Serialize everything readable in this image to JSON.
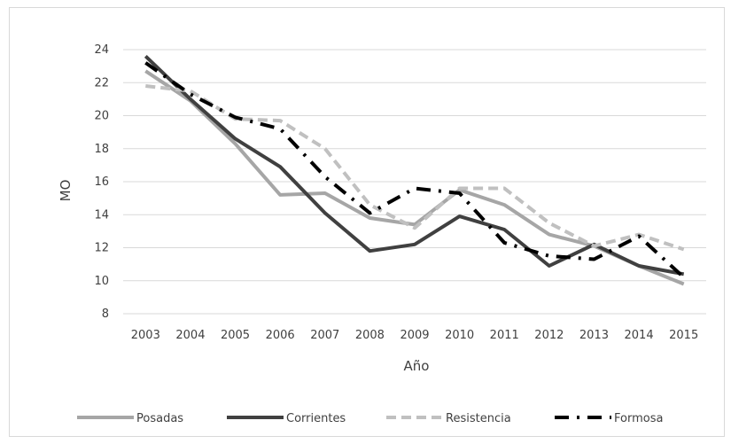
{
  "chart_data": {
    "type": "line",
    "xlabel": "Año",
    "ylabel": "MO",
    "categories": [
      "2003",
      "2004",
      "2005",
      "2006",
      "2007",
      "2008",
      "2009",
      "2010",
      "2011",
      "2012",
      "2013",
      "2014",
      "2015"
    ],
    "yticks": [
      "8",
      "10",
      "12",
      "14",
      "16",
      "18",
      "20",
      "22",
      "24"
    ],
    "ylim": [
      8,
      24
    ],
    "grid": true,
    "legend_position": "bottom",
    "series": [
      {
        "name": "Posadas",
        "color": "#a6a6a6",
        "style": "solid",
        "values": [
          22.7,
          20.9,
          18.3,
          15.2,
          15.3,
          13.8,
          13.4,
          15.5,
          14.6,
          12.8,
          12.1,
          10.9,
          9.8
        ]
      },
      {
        "name": "Corrientes",
        "color": "#404040",
        "style": "solid",
        "values": [
          23.6,
          21.0,
          18.6,
          16.9,
          14.1,
          11.8,
          12.2,
          13.9,
          13.1,
          10.9,
          12.2,
          10.9,
          10.4
        ]
      },
      {
        "name": "Resistencia",
        "color": "#c0c0c0",
        "style": "dashed",
        "values": [
          21.8,
          21.5,
          19.8,
          19.7,
          18.0,
          14.6,
          13.2,
          15.6,
          15.6,
          13.5,
          12.1,
          12.8,
          11.9
        ]
      },
      {
        "name": "Formosa",
        "color": "#000000",
        "style": "dashdot",
        "values": [
          23.2,
          21.3,
          19.9,
          19.2,
          16.3,
          14.1,
          15.6,
          15.3,
          12.3,
          11.5,
          11.3,
          12.7,
          10.2
        ]
      }
    ]
  }
}
